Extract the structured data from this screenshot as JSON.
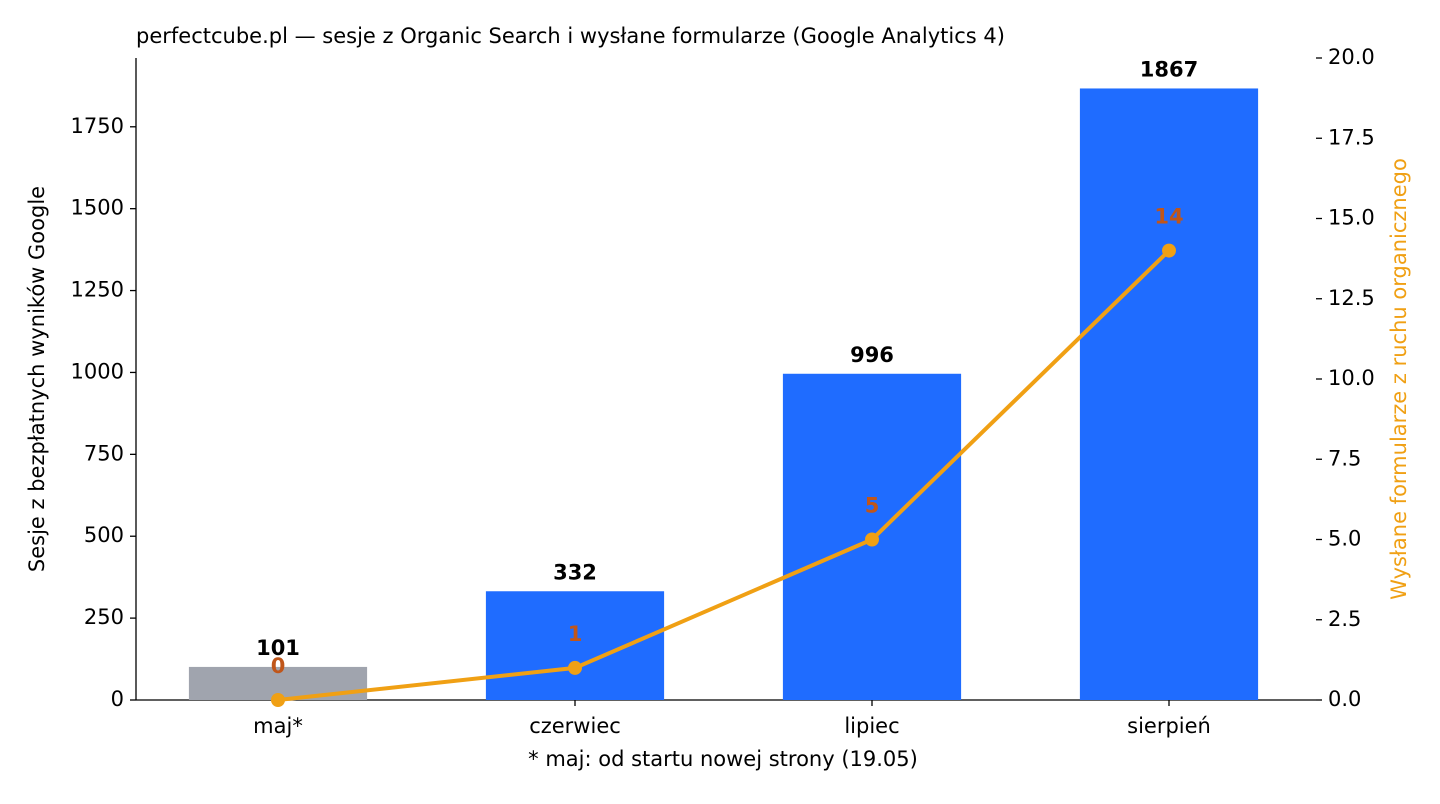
{
  "chart_data": {
    "type": "bar_line",
    "title": "perfectcube.pl — sesje z Organic Search i wysłane formularze (Google Analytics 4)",
    "ylabel": "Sesje z bezpłatnych wyników Google",
    "y2label": "Wysłane formularze z ruchu organicznego",
    "xlabel": "* maj: od startu nowej strony (19.05)",
    "categories": [
      "maj*",
      "czerwiec",
      "lipiec",
      "sierpień"
    ],
    "series": [
      {
        "type": "bar",
        "colors": [
          "#a0a4ae",
          "#1f6cff",
          "#1f6cff",
          "#1f6cff"
        ],
        "label_color": "#000000",
        "values": [
          101,
          332,
          996,
          1867
        ]
      },
      {
        "type": "line",
        "axis": "y2",
        "color": "#f0a014",
        "label_color": "#c0561a",
        "values": [
          0,
          1,
          5,
          14
        ]
      }
    ],
    "ylim": [
      0,
      1960
    ],
    "yticks": [
      0,
      250,
      500,
      750,
      1000,
      1250,
      1500,
      1750
    ],
    "y2lim": [
      0,
      20
    ],
    "y2ticks": [
      {
        "value": 0,
        "label": "0.0"
      },
      2.5,
      {
        "value": 5,
        "label": "5.0"
      },
      7.5,
      {
        "value": 10,
        "label": "10.0"
      },
      12.5,
      {
        "value": 15,
        "label": "15.0"
      },
      17.5,
      {
        "value": 20,
        "label": "20.0"
      }
    ],
    "y2label_color": "#f0a014"
  }
}
